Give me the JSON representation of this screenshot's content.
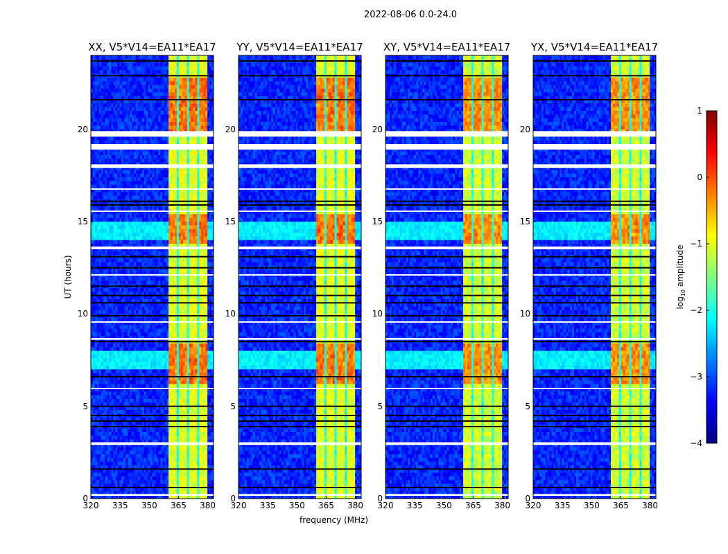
{
  "chart_data": {
    "type": "heatmap",
    "title": "2022-08-06 0.0-24.0",
    "xlabel": "frequency (MHz)",
    "ylabel": "UT (hours)",
    "xlim": [
      320,
      383
    ],
    "ylim": [
      0,
      24
    ],
    "xticks": [
      "320",
      "335",
      "350",
      "365",
      "380"
    ],
    "yticks": [
      "0",
      "5",
      "10",
      "15",
      "20"
    ],
    "panels": [
      {
        "title": "XX, V5*V14=EA11*EA17",
        "band_level": -1.0
      },
      {
        "title": "YY, V5*V14=EA11*EA17",
        "band_level": -1.0
      },
      {
        "title": "XY, V5*V14=EA11*EA17",
        "band_level": -1.1
      },
      {
        "title": "YX, V5*V14=EA11*EA17",
        "band_level": -1.1
      }
    ],
    "background_level": -3.2,
    "rfi_subbands_mhz": [
      [
        360,
        364.5
      ],
      [
        365.5,
        369.5
      ],
      [
        370.5,
        374.5
      ],
      [
        375.5,
        379.5
      ]
    ],
    "strong_rfi_hours": [
      [
        6.2,
        8.4
      ],
      [
        13.8,
        15.3
      ],
      [
        19.8,
        22.8
      ]
    ],
    "broadband_hours": [
      [
        7.0,
        7.9
      ],
      [
        14.0,
        14.9
      ]
    ],
    "flagged_hours": [
      [
        19.6,
        19.9
      ],
      [
        18.9,
        19.2
      ],
      [
        17.9,
        18.1
      ],
      [
        13.5,
        13.65
      ],
      [
        2.9,
        3.05
      ],
      [
        0.15,
        0.25
      ],
      [
        9.55,
        9.6
      ],
      [
        8.6,
        8.7
      ],
      [
        5.95,
        6.0
      ],
      [
        12.1,
        12.15
      ],
      [
        16.75,
        16.8
      ],
      [
        15.55,
        15.6
      ]
    ],
    "dropout_hours": [
      23.7,
      22.9,
      21.6,
      16.1,
      15.9,
      13.1,
      12.5,
      11.5,
      11.0,
      10.6,
      9.9,
      8.5,
      6.6,
      5.0,
      4.5,
      4.2,
      3.9,
      1.6,
      0.6
    ],
    "colorbar": {
      "label": "log10 amplitude",
      "label_main": "log",
      "label_sub": "10",
      "label_rest": " amplitude",
      "range": [
        -4,
        1
      ],
      "ticks": [
        "1",
        "0",
        "−1",
        "−2",
        "−3",
        "−4"
      ],
      "colormap": "jet"
    }
  }
}
